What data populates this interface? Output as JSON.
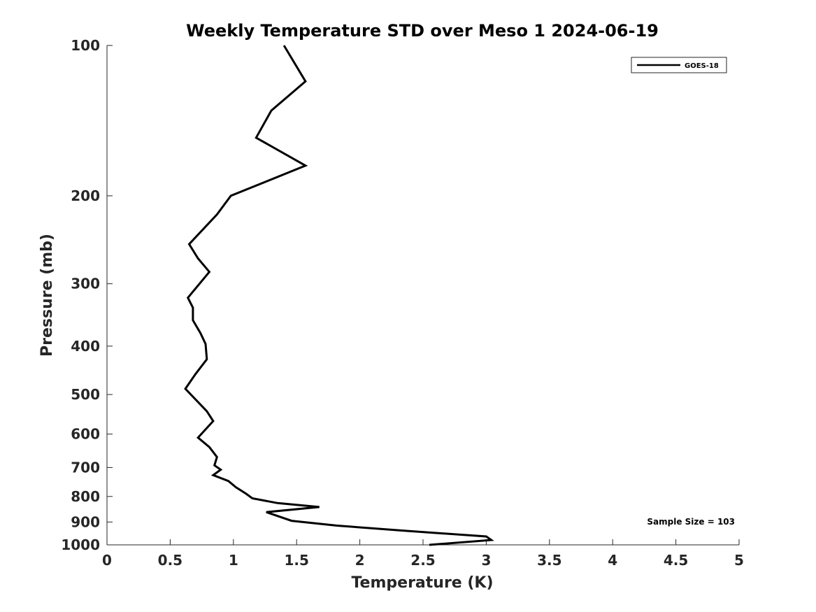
{
  "chart_data": {
    "type": "line",
    "title": "Weekly Temperature STD over Meso 1 2024-06-19",
    "xlabel": "Temperature (K)",
    "ylabel": "Pressure (mb)",
    "xlim": [
      0,
      5
    ],
    "ylim": [
      100,
      1000
    ],
    "y_scale": "log",
    "y_reversed": true,
    "x_ticks": [
      0,
      0.5,
      1,
      1.5,
      2,
      2.5,
      3,
      3.5,
      4,
      4.5,
      5
    ],
    "x_tick_labels": [
      "0",
      "0.5",
      "1",
      "1.5",
      "2",
      "2.5",
      "3",
      "3.5",
      "4",
      "4.5",
      "5"
    ],
    "y_ticks": [
      100,
      200,
      300,
      400,
      500,
      600,
      700,
      800,
      900,
      1000
    ],
    "y_tick_labels": [
      "100",
      "200",
      "300",
      "400",
      "500",
      "600",
      "700",
      "800",
      "900",
      "1000"
    ],
    "grid": false,
    "legend_position": "top-right",
    "annotation": "Sample Size = 103",
    "series": [
      {
        "name": "GOES-18",
        "color": "#000000",
        "points": [
          {
            "x": 1.4,
            "p": 100
          },
          {
            "x": 1.57,
            "p": 118
          },
          {
            "x": 1.3,
            "p": 135
          },
          {
            "x": 1.18,
            "p": 153
          },
          {
            "x": 1.57,
            "p": 174
          },
          {
            "x": 0.98,
            "p": 200
          },
          {
            "x": 0.87,
            "p": 218
          },
          {
            "x": 0.65,
            "p": 250
          },
          {
            "x": 0.72,
            "p": 267
          },
          {
            "x": 0.81,
            "p": 284
          },
          {
            "x": 0.64,
            "p": 320
          },
          {
            "x": 0.68,
            "p": 335
          },
          {
            "x": 0.68,
            "p": 355
          },
          {
            "x": 0.74,
            "p": 377
          },
          {
            "x": 0.78,
            "p": 396
          },
          {
            "x": 0.79,
            "p": 425
          },
          {
            "x": 0.7,
            "p": 455
          },
          {
            "x": 0.62,
            "p": 487
          },
          {
            "x": 0.79,
            "p": 540
          },
          {
            "x": 0.84,
            "p": 565
          },
          {
            "x": 0.72,
            "p": 610
          },
          {
            "x": 0.81,
            "p": 637
          },
          {
            "x": 0.87,
            "p": 667
          },
          {
            "x": 0.85,
            "p": 693
          },
          {
            "x": 0.9,
            "p": 707
          },
          {
            "x": 0.84,
            "p": 725
          },
          {
            "x": 0.96,
            "p": 745
          },
          {
            "x": 1.02,
            "p": 767
          },
          {
            "x": 1.1,
            "p": 790
          },
          {
            "x": 1.15,
            "p": 807
          },
          {
            "x": 1.35,
            "p": 825
          },
          {
            "x": 1.68,
            "p": 840
          },
          {
            "x": 1.26,
            "p": 860
          },
          {
            "x": 1.46,
            "p": 895
          },
          {
            "x": 1.82,
            "p": 915
          },
          {
            "x": 2.35,
            "p": 937
          },
          {
            "x": 3.0,
            "p": 962
          },
          {
            "x": 3.04,
            "p": 978
          },
          {
            "x": 2.55,
            "p": 1000
          }
        ]
      }
    ]
  }
}
